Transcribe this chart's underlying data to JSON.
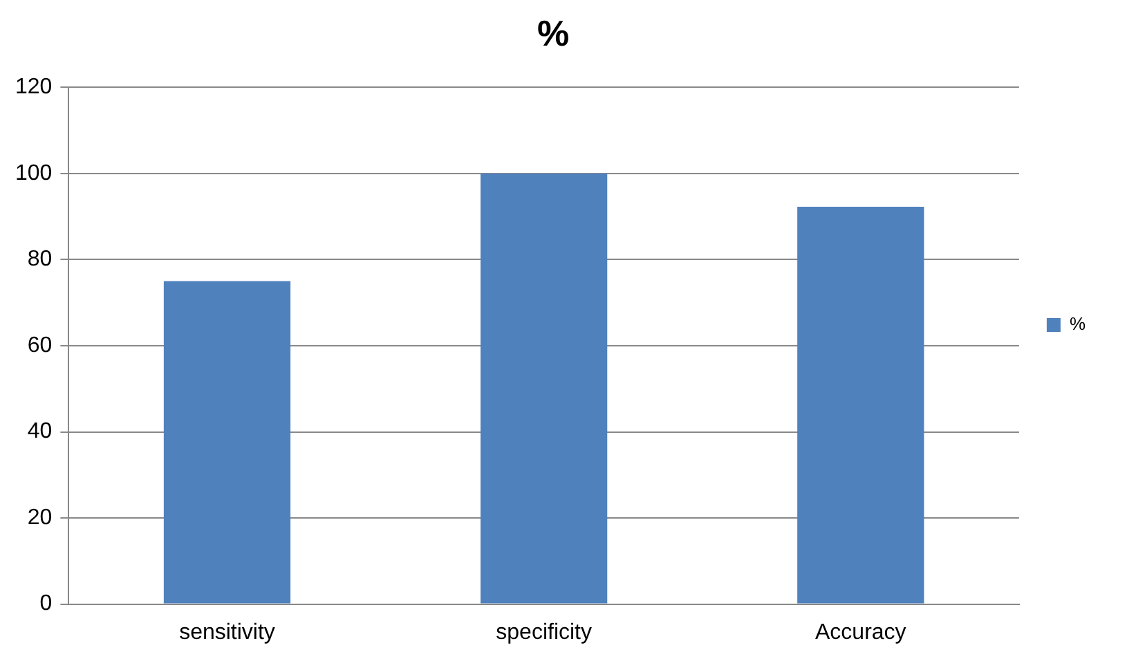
{
  "chart_data": {
    "type": "bar",
    "title": "%",
    "categories": [
      "sensitivity",
      "specificity",
      "Accuracy"
    ],
    "series": [
      {
        "name": "%",
        "color": "#4f81bd",
        "values": [
          75,
          100,
          92.3
        ]
      }
    ],
    "ylim": [
      0,
      120
    ],
    "yticks": [
      0,
      20,
      40,
      60,
      80,
      100,
      120
    ],
    "grid": "y",
    "legend": "right"
  }
}
